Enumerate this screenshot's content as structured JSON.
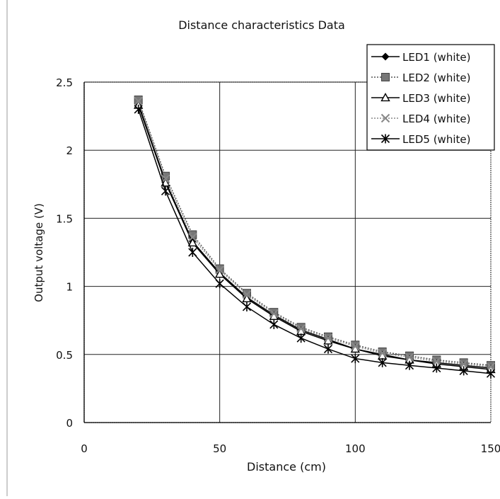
{
  "chart_data": {
    "type": "line",
    "title": "Distance characteristics Data",
    "xlabel": "Distance (cm)",
    "ylabel": "Output voltage (V)",
    "xlim": [
      0,
      150
    ],
    "ylim": [
      0,
      2.5
    ],
    "xticks": [
      0,
      50,
      100,
      150
    ],
    "yticks": [
      0,
      0.5,
      1,
      1.5,
      2,
      2.5
    ],
    "xtick_labels": [
      "0",
      "50",
      "100",
      "150"
    ],
    "ytick_labels": [
      "0",
      "0.5",
      "1",
      "1.5",
      "2",
      "2.5"
    ],
    "grid": true,
    "legend_position": "top-right",
    "x": [
      20,
      30,
      40,
      50,
      60,
      70,
      80,
      90,
      100,
      110,
      120,
      130,
      140,
      150
    ],
    "series": [
      {
        "name": "LED1 (white)",
        "marker": "diamond",
        "style": "solid",
        "color": "#000000",
        "values": [
          2.34,
          1.77,
          1.33,
          1.1,
          0.92,
          0.79,
          0.68,
          0.61,
          0.54,
          0.5,
          0.46,
          0.44,
          0.42,
          0.4
        ]
      },
      {
        "name": "LED2 (white)",
        "marker": "square",
        "style": "dotted",
        "color": "#555555",
        "values": [
          2.37,
          1.81,
          1.38,
          1.13,
          0.95,
          0.81,
          0.7,
          0.63,
          0.57,
          0.52,
          0.49,
          0.46,
          0.44,
          0.42
        ]
      },
      {
        "name": "LED3 (white)",
        "marker": "triangle",
        "style": "solid",
        "color": "#000000",
        "values": [
          2.33,
          1.76,
          1.32,
          1.09,
          0.91,
          0.78,
          0.67,
          0.6,
          0.54,
          0.49,
          0.46,
          0.43,
          0.41,
          0.39
        ]
      },
      {
        "name": "LED4 (white)",
        "marker": "x",
        "style": "dotted",
        "color": "#888888",
        "values": [
          2.36,
          1.79,
          1.36,
          1.12,
          0.94,
          0.8,
          0.69,
          0.62,
          0.56,
          0.51,
          0.48,
          0.45,
          0.43,
          0.41
        ]
      },
      {
        "name": "LED5 (white)",
        "marker": "star",
        "style": "solid",
        "color": "#000000",
        "values": [
          2.3,
          1.7,
          1.25,
          1.02,
          0.85,
          0.72,
          0.62,
          0.54,
          0.47,
          0.44,
          0.42,
          0.4,
          0.38,
          0.36
        ]
      }
    ]
  }
}
